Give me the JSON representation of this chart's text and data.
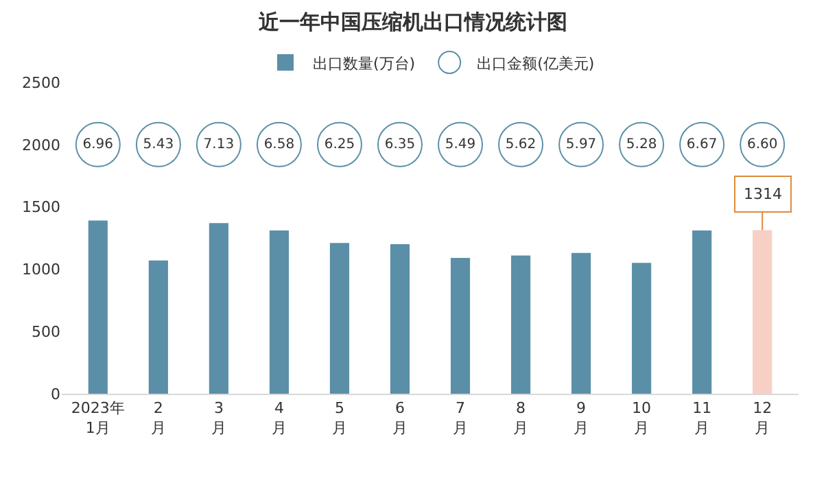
{
  "chart_data": [
    {
      "type": "other",
      "series": [
        {
          "name": "出口金额(亿美元)",
          "color": "#5b8fa8",
          "values": [
            6.96,
            5.43,
            7.13,
            6.58,
            6.25,
            6.35,
            5.49,
            5.62,
            5.97,
            5.28,
            6.67,
            6.6
          ],
          "value_labels": [
            "6.96",
            "5.43",
            "7.13",
            "6.58",
            "6.25",
            "6.35",
            "5.49",
            "5.62",
            "5.97",
            "5.28",
            "6.67",
            "6.60"
          ]
        }
      ]
    },
    {
      "type": "bar",
      "title": "近一年中国压缩机出口情况统计图",
      "categories": [
        "2023年\n1月",
        "2\n月",
        "3\n月",
        "4\n月",
        "5\n月",
        "6\n月",
        "7\n月",
        "8\n月",
        "9\n月",
        "10\n月",
        "11\n月",
        "12\n月"
      ],
      "series": [
        {
          "name": "出口数量(万台)",
          "colors": [
            "#5b8fa8",
            "#5b8fa8",
            "#5b8fa8",
            "#5b8fa8",
            "#5b8fa8",
            "#5b8fa8",
            "#5b8fa8",
            "#5b8fa8",
            "#5b8fa8",
            "#5b8fa8",
            "#5b8fa8",
            "#f8cfc5"
          ],
          "values": [
            1390,
            1070,
            1370,
            1310,
            1210,
            1200,
            1090,
            1110,
            1130,
            1050,
            1310,
            1314
          ],
          "value_labels": [
            null,
            null,
            null,
            null,
            null,
            null,
            null,
            null,
            null,
            null,
            null,
            "1314"
          ]
        }
      ],
      "ylim": [
        0,
        2500
      ],
      "yticks": [
        0,
        500,
        1000,
        1500,
        2000,
        2500
      ],
      "legend": "top"
    }
  ]
}
